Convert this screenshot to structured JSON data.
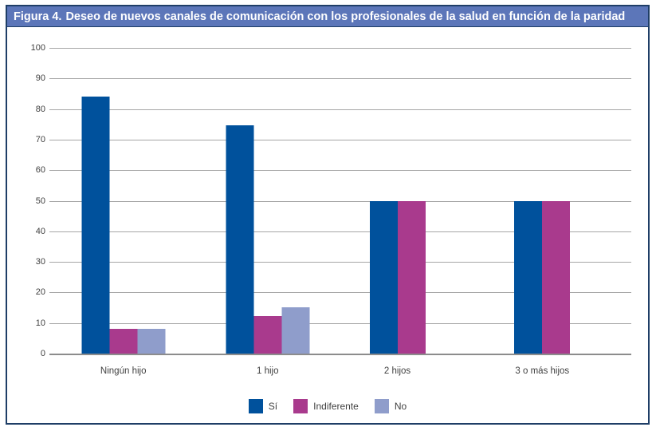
{
  "header": {
    "prefix": "Figura 4.",
    "title": "Deseo de nuevos canales de comunicación con los profesionales de la salud en función de la paridad"
  },
  "colors": {
    "header_bg": "#5C76B9",
    "border": "#1F3E67",
    "gridline": "#A6A6A6",
    "axis": "#8C8C8C",
    "si": "#00519C",
    "indiferente": "#A93A8D",
    "no": "#8F9DCB"
  },
  "chart_data": {
    "type": "bar",
    "title": "Figura 4. Deseo de nuevos canales de comunicación con los profesionales de la salud en función de la paridad",
    "categories": [
      "Ningún hijo",
      "1 hijo",
      "2 hijos",
      "3 o más hijos"
    ],
    "series": [
      {
        "name": "Sí",
        "color": "#00519C",
        "values": [
          84,
          74.7,
          50,
          50
        ]
      },
      {
        "name": "Indiferente",
        "color": "#A93A8D",
        "values": [
          8.2,
          12.3,
          50,
          50
        ]
      },
      {
        "name": "No",
        "color": "#8F9DCB",
        "values": [
          8.2,
          15.1,
          0,
          0
        ]
      }
    ],
    "xlabel": "",
    "ylabel": "",
    "ylim": [
      0,
      100
    ],
    "yticks": [
      100,
      90,
      80,
      70,
      60,
      50,
      40,
      30,
      20,
      10,
      0
    ],
    "grid": true,
    "legend_position": "bottom",
    "category_centers_pct": [
      12.7,
      37.5,
      59.8,
      84.7
    ]
  }
}
